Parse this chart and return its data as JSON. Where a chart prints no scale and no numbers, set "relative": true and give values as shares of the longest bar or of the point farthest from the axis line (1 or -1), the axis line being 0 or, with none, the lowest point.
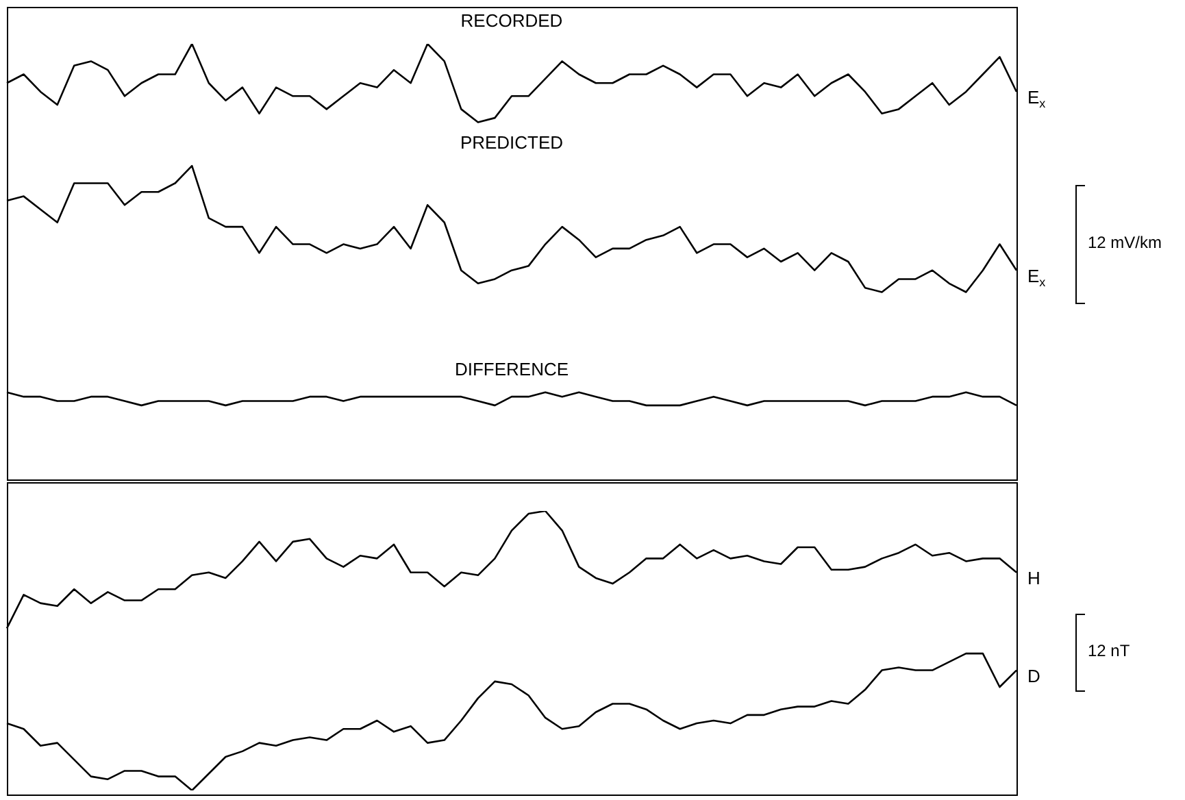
{
  "chart_data": [
    {
      "type": "line",
      "relative": true,
      "marker": "none",
      "annotations": [
        "RECORDED",
        "PREDICTED",
        "DIFFERENCE",
        "12 mV/km"
      ],
      "categories": [
        null,
        null,
        null,
        null,
        null,
        null,
        null,
        null,
        null,
        null,
        null,
        null,
        null,
        null,
        null,
        null,
        null,
        null,
        null,
        null,
        null,
        null,
        null,
        null,
        null,
        null,
        null,
        null,
        null,
        null,
        null,
        null,
        null,
        null,
        null,
        null,
        null,
        null,
        null,
        null,
        null,
        null,
        null,
        null,
        null,
        null,
        null,
        null,
        null,
        null,
        null,
        null,
        null,
        null,
        null,
        null,
        null,
        null,
        null,
        null,
        null
      ],
      "series": [
        {
          "name": "E$_{x}$",
          "color": "#000000",
          "values": [
            0.91,
            0.93,
            0.89,
            0.86,
            0.95,
            0.96,
            0.94,
            0.88,
            0.91,
            0.93,
            0.93,
            1.0,
            0.91,
            0.87,
            0.9,
            0.84,
            0.9,
            0.88,
            0.88,
            0.85,
            0.88,
            0.91,
            0.9,
            0.94,
            0.91,
            1.0,
            0.96,
            0.85,
            0.82,
            0.83,
            0.88,
            0.88,
            0.92,
            0.96,
            0.93,
            0.91,
            0.91,
            0.93,
            0.93,
            0.95,
            0.93,
            0.9,
            0.93,
            0.93,
            0.88,
            0.91,
            0.9,
            0.93,
            0.88,
            0.91,
            0.93,
            0.89,
            0.84,
            0.85,
            0.88,
            0.91,
            0.86,
            0.89,
            0.93,
            0.97,
            0.89
          ]
        },
        {
          "name": "E$_{x}$",
          "color": "#000000",
          "values": [
            0.64,
            0.65,
            0.62,
            0.59,
            0.68,
            0.68,
            0.68,
            0.63,
            0.66,
            0.66,
            0.68,
            0.72,
            0.6,
            0.58,
            0.58,
            0.52,
            0.58,
            0.54,
            0.54,
            0.52,
            0.54,
            0.53,
            0.54,
            0.58,
            0.53,
            0.63,
            0.59,
            0.48,
            0.45,
            0.46,
            0.48,
            0.49,
            0.54,
            0.58,
            0.55,
            0.51,
            0.53,
            0.53,
            0.55,
            0.56,
            0.58,
            0.52,
            0.54,
            0.54,
            0.51,
            0.53,
            0.5,
            0.52,
            0.48,
            0.52,
            0.5,
            0.44,
            0.43,
            0.46,
            0.46,
            0.48,
            0.45,
            0.43,
            0.48,
            0.54,
            0.48
          ]
        },
        {
          "color": "#000000",
          "values": [
            0.2,
            0.19,
            0.19,
            0.18,
            0.18,
            0.19,
            0.19,
            0.18,
            0.17,
            0.18,
            0.18,
            0.18,
            0.18,
            0.17,
            0.18,
            0.18,
            0.18,
            0.18,
            0.19,
            0.19,
            0.18,
            0.19,
            0.19,
            0.19,
            0.19,
            0.19,
            0.19,
            0.19,
            0.18,
            0.17,
            0.19,
            0.19,
            0.2,
            0.19,
            0.2,
            0.19,
            0.18,
            0.18,
            0.17,
            0.17,
            0.17,
            0.18,
            0.19,
            0.18,
            0.17,
            0.18,
            0.18,
            0.18,
            0.18,
            0.18,
            0.18,
            0.17,
            0.18,
            0.18,
            0.18,
            0.19,
            0.19,
            0.2,
            0.19,
            0.19,
            0.17
          ]
        }
      ]
    },
    {
      "type": "line",
      "relative": true,
      "marker": "none",
      "annotations": [
        "12 nT"
      ],
      "categories": [
        null,
        null,
        null,
        null,
        null,
        null,
        null,
        null,
        null,
        null,
        null,
        null,
        null,
        null,
        null,
        null,
        null,
        null,
        null,
        null,
        null,
        null,
        null,
        null,
        null,
        null,
        null,
        null,
        null,
        null,
        null,
        null,
        null,
        null,
        null,
        null,
        null,
        null,
        null,
        null,
        null,
        null,
        null,
        null,
        null,
        null,
        null,
        null,
        null,
        null,
        null,
        null,
        null,
        null,
        null,
        null,
        null,
        null,
        null,
        null,
        null
      ],
      "series": [
        {
          "name": "H",
          "color": "#000000",
          "values": [
            0.58,
            0.7,
            0.67,
            0.66,
            0.72,
            0.67,
            0.71,
            0.68,
            0.68,
            0.72,
            0.72,
            0.77,
            0.78,
            0.76,
            0.82,
            0.89,
            0.82,
            0.89,
            0.9,
            0.83,
            0.8,
            0.84,
            0.83,
            0.88,
            0.78,
            0.78,
            0.73,
            0.78,
            0.77,
            0.83,
            0.93,
            0.99,
            1.0,
            0.93,
            0.8,
            0.76,
            0.74,
            0.78,
            0.83,
            0.83,
            0.88,
            0.83,
            0.86,
            0.83,
            0.84,
            0.82,
            0.81,
            0.87,
            0.87,
            0.79,
            0.79,
            0.8,
            0.83,
            0.85,
            0.88,
            0.84,
            0.85,
            0.82,
            0.83,
            0.83,
            0.78
          ]
        },
        {
          "name": "D",
          "color": "#000000",
          "values": [
            0.24,
            0.22,
            0.16,
            0.17,
            0.11,
            0.05,
            0.04,
            0.07,
            0.07,
            0.05,
            0.05,
            0,
            0.06,
            0.12,
            0.14,
            0.17,
            0.16,
            0.18,
            0.19,
            0.18,
            0.22,
            0.22,
            0.25,
            0.21,
            0.23,
            0.17,
            0.18,
            0.25,
            0.33,
            0.39,
            0.38,
            0.34,
            0.26,
            0.22,
            0.23,
            0.28,
            0.31,
            0.31,
            0.29,
            0.25,
            0.22,
            0.24,
            0.25,
            0.24,
            0.27,
            0.27,
            0.29,
            0.3,
            0.3,
            0.32,
            0.31,
            0.36,
            0.43,
            0.44,
            0.43,
            0.43,
            0.46,
            0.49,
            0.49,
            0.37,
            0.43
          ]
        }
      ]
    }
  ]
}
